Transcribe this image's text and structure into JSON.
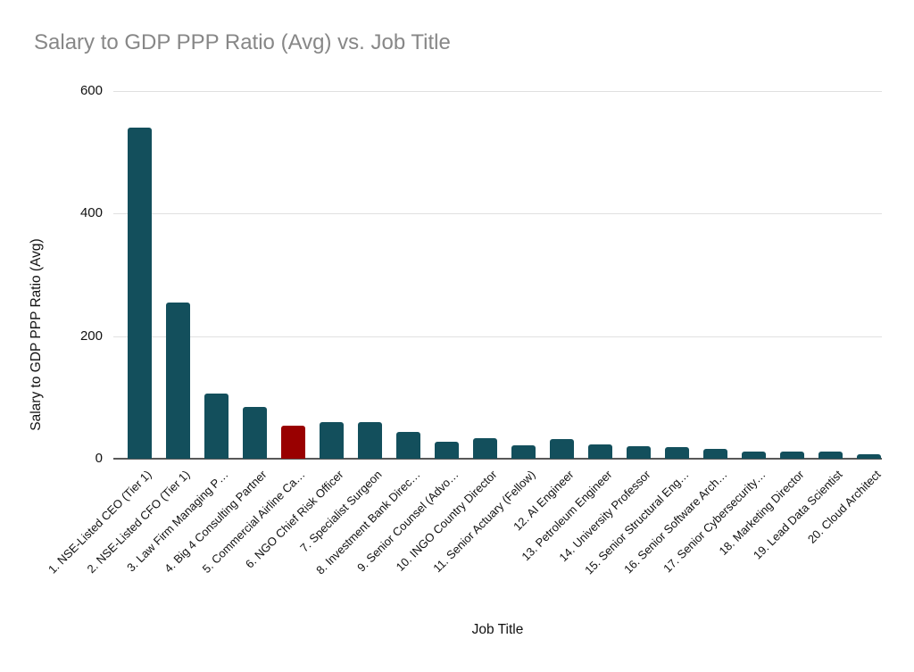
{
  "chart_data": {
    "type": "bar",
    "title": "Salary to GDP PPP Ratio (Avg) vs. Job Title",
    "xlabel": "Job Title",
    "ylabel": "Salary to GDP PPP Ratio (Avg)",
    "categories": [
      "1. NSE-Listed CEO (Tier 1)",
      "2. NSE-Listed CFO (Tier 1)",
      "3. Law Firm Managing P…",
      "4. Big 4 Consulting Partner",
      "5. Commercial Airline Ca…",
      "6. NGO Chief Risk Officer",
      "7. Specialist Surgeon",
      "8. Investment Bank Direc…",
      "9. Senior Counsel (Advo…",
      "10. INGO Country Director",
      "11. Senior Actuary (Fellow)",
      "12. AI Engineer",
      "13. Petroleum Engineer",
      "14. University Professor",
      "15. Senior Structural Eng…",
      "16. Senior Software Arch…",
      "17. Senior Cybersecurity…",
      "18. Marketing Director",
      "19. Lead Data Scientist",
      "20. Cloud Architect"
    ],
    "values": [
      540,
      255,
      106,
      84,
      54,
      60,
      60,
      44,
      27,
      34,
      22,
      32,
      23,
      20,
      19,
      16,
      11,
      12,
      12,
      7
    ],
    "yticks": [
      0,
      200,
      400,
      600
    ],
    "ylim": [
      0,
      600
    ],
    "grid": true,
    "legend": "none",
    "colors": {
      "bar_default": "#134f5c",
      "bar_highlight": "#990000",
      "highlight_index": 4,
      "gridline": "#e0e0e0",
      "axis_line": "#595959",
      "title_text": "#878787",
      "tick_text": "#111111"
    }
  }
}
